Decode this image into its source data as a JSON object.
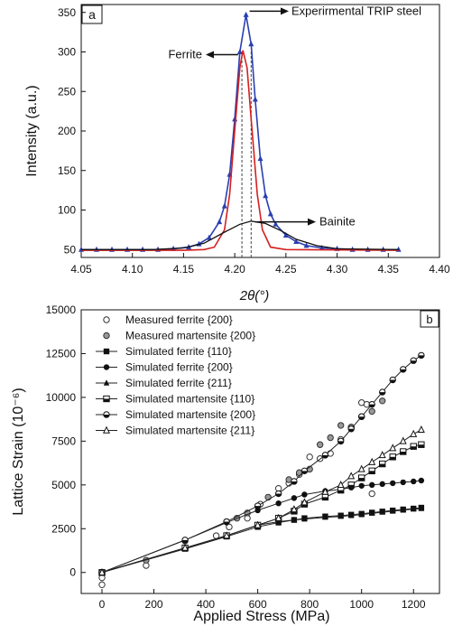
{
  "chart_data": [
    {
      "type": "line",
      "panel_label": "a",
      "xlabel": "2θ(°)",
      "ylabel": "Intensity (a.u.)",
      "xlim": [
        4.05,
        4.4
      ],
      "ylim": [
        40,
        360
      ],
      "xticks": [
        "4.05",
        "4.10",
        "4.15",
        "4.20",
        "4.25",
        "4.30",
        "4.35",
        "4.40"
      ],
      "yticks": [
        "50",
        "100",
        "150",
        "200",
        "250",
        "300",
        "350"
      ],
      "annotations": [
        {
          "text": "Experirmental TRIP steel",
          "x": 4.211,
          "y": 347
        },
        {
          "text": "Ferrite",
          "x": 4.205,
          "y": 300
        },
        {
          "text": "Bainite",
          "x": 4.22,
          "y": 85
        }
      ],
      "peak_lines_x": [
        4.207,
        4.216
      ],
      "series": [
        {
          "color": "#2a3fb0",
          "marker": "triangle",
          "points": [
            [
              4.05,
              50
            ],
            [
              4.065,
              50
            ],
            [
              4.08,
              50
            ],
            [
              4.095,
              50
            ],
            [
              4.11,
              50
            ],
            [
              4.125,
              50
            ],
            [
              4.14,
              51
            ],
            [
              4.155,
              53
            ],
            [
              4.165,
              57
            ],
            [
              4.175,
              65
            ],
            [
              4.185,
              85
            ],
            [
              4.19,
              105
            ],
            [
              4.195,
              145
            ],
            [
              4.2,
              215
            ],
            [
              4.205,
              300
            ],
            [
              4.211,
              347
            ],
            [
              4.216,
              310
            ],
            [
              4.22,
              240
            ],
            [
              4.225,
              165
            ],
            [
              4.23,
              118
            ],
            [
              4.235,
              95
            ],
            [
              4.24,
              82
            ],
            [
              4.25,
              68
            ],
            [
              4.26,
              60
            ],
            [
              4.27,
              55
            ],
            [
              4.285,
              52
            ],
            [
              4.3,
              51
            ],
            [
              4.315,
              50
            ],
            [
              4.33,
              50
            ],
            [
              4.345,
              50
            ],
            [
              4.36,
              50
            ]
          ]
        },
        {
          "color": "#d42020",
          "marker": "none",
          "points": [
            [
              4.05,
              49
            ],
            [
              4.15,
              49
            ],
            [
              4.17,
              50
            ],
            [
              4.18,
              53
            ],
            [
              4.19,
              75
            ],
            [
              4.195,
              120
            ],
            [
              4.2,
              200
            ],
            [
              4.205,
              280
            ],
            [
              4.208,
              302
            ],
            [
              4.212,
              280
            ],
            [
              4.217,
              200
            ],
            [
              4.222,
              120
            ],
            [
              4.227,
              75
            ],
            [
              4.235,
              53
            ],
            [
              4.25,
              50
            ],
            [
              4.36,
              49
            ]
          ]
        },
        {
          "color": "#111111",
          "marker": "none",
          "points": [
            [
              4.05,
              50
            ],
            [
              4.12,
              50
            ],
            [
              4.15,
              52
            ],
            [
              4.17,
              58
            ],
            [
              4.19,
              72
            ],
            [
              4.205,
              82
            ],
            [
              4.216,
              86
            ],
            [
              4.23,
              83
            ],
            [
              4.245,
              74
            ],
            [
              4.26,
              63
            ],
            [
              4.28,
              55
            ],
            [
              4.3,
              51
            ],
            [
              4.36,
              50
            ]
          ]
        }
      ]
    },
    {
      "type": "scatter",
      "panel_label": "b",
      "xlabel": "Applied Stress (MPa)",
      "ylabel": "Lattice Strain (10⁻⁶)",
      "xlim": [
        -80,
        1300
      ],
      "ylim": [
        -1200,
        15000
      ],
      "xticks": [
        "0",
        "200",
        "400",
        "600",
        "800",
        "1000",
        "1200"
      ],
      "yticks": [
        "0",
        "2500",
        "5000",
        "7500",
        "10000",
        "12500",
        "15000"
      ],
      "legend_position": "top-left",
      "series": [
        {
          "name": "Measured ferrite {200}",
          "marker": "open-circle",
          "line": false,
          "points": [
            [
              0,
              -700
            ],
            [
              0,
              -300
            ],
            [
              170,
              400
            ],
            [
              320,
              1400
            ],
            [
              440,
              2100
            ],
            [
              490,
              2600
            ],
            [
              560,
              3100
            ],
            [
              610,
              3900
            ],
            [
              680,
              4800
            ],
            [
              720,
              5100
            ],
            [
              760,
              5600
            ],
            [
              800,
              6600
            ],
            [
              840,
              6500
            ],
            [
              880,
              6800
            ],
            [
              920,
              7600
            ],
            [
              960,
              8300
            ],
            [
              1000,
              9700
            ],
            [
              1020,
              9600
            ],
            [
              1040,
              4500
            ]
          ]
        },
        {
          "name": "Measured martensite {200}",
          "marker": "hatched-circle",
          "line": false,
          "points": [
            [
              0,
              0
            ],
            [
              170,
              700
            ],
            [
              320,
              1800
            ],
            [
              480,
              2900
            ],
            [
              520,
              3100
            ],
            [
              560,
              3400
            ],
            [
              600,
              3800
            ],
            [
              640,
              4300
            ],
            [
              720,
              5300
            ],
            [
              760,
              5700
            ],
            [
              800,
              5900
            ],
            [
              840,
              7300
            ],
            [
              880,
              7700
            ],
            [
              920,
              8400
            ],
            [
              960,
              8300
            ],
            [
              1000,
              8900
            ],
            [
              1040,
              9200
            ],
            [
              1080,
              9800
            ]
          ]
        },
        {
          "name": "Simulated ferrite {110}",
          "marker": "filled-square",
          "line": true,
          "points": [
            [
              0,
              0
            ],
            [
              320,
              1350
            ],
            [
              480,
              2050
            ],
            [
              600,
              2600
            ],
            [
              680,
              2850
            ],
            [
              740,
              3000
            ],
            [
              780,
              3100
            ],
            [
              860,
              3200
            ],
            [
              920,
              3250
            ],
            [
              960,
              3300
            ],
            [
              1000,
              3350
            ],
            [
              1040,
              3420
            ],
            [
              1080,
              3480
            ],
            [
              1120,
              3540
            ],
            [
              1160,
              3600
            ],
            [
              1200,
              3650
            ],
            [
              1230,
              3700
            ]
          ]
        },
        {
          "name": "Simulated ferrite {200}",
          "marker": "filled-circle",
          "line": true,
          "points": [
            [
              0,
              0
            ],
            [
              320,
              1850
            ],
            [
              480,
              2850
            ],
            [
              600,
              3550
            ],
            [
              680,
              3950
            ],
            [
              740,
              4250
            ],
            [
              780,
              4450
            ],
            [
              860,
              4650
            ],
            [
              920,
              4750
            ],
            [
              960,
              4850
            ],
            [
              1000,
              4950
            ],
            [
              1040,
              5000
            ],
            [
              1080,
              5050
            ],
            [
              1120,
              5100
            ],
            [
              1160,
              5150
            ],
            [
              1200,
              5200
            ],
            [
              1230,
              5250
            ]
          ]
        },
        {
          "name": "Simulated ferrite {211}",
          "marker": "filled-triangle",
          "line": true,
          "points": [
            [
              0,
              0
            ],
            [
              320,
              1400
            ],
            [
              480,
              2100
            ],
            [
              600,
              2700
            ],
            [
              680,
              2900
            ],
            [
              740,
              3000
            ],
            [
              780,
              3050
            ],
            [
              860,
              3150
            ],
            [
              920,
              3200
            ],
            [
              960,
              3250
            ],
            [
              1000,
              3300
            ],
            [
              1040,
              3380
            ],
            [
              1080,
              3440
            ],
            [
              1120,
              3500
            ],
            [
              1160,
              3560
            ],
            [
              1200,
              3620
            ],
            [
              1230,
              3650
            ]
          ]
        },
        {
          "name": "Simulated martensite {110}",
          "marker": "half-square",
          "line": true,
          "points": [
            [
              0,
              0
            ],
            [
              320,
              1400
            ],
            [
              480,
              2100
            ],
            [
              600,
              2700
            ],
            [
              680,
              3100
            ],
            [
              740,
              3500
            ],
            [
              780,
              3900
            ],
            [
              860,
              4300
            ],
            [
              920,
              4700
            ],
            [
              960,
              5000
            ],
            [
              1000,
              5400
            ],
            [
              1040,
              5800
            ],
            [
              1080,
              6200
            ],
            [
              1120,
              6600
            ],
            [
              1160,
              6900
            ],
            [
              1200,
              7200
            ],
            [
              1230,
              7300
            ]
          ]
        },
        {
          "name": "Simulated martensite {200}",
          "marker": "half-circle",
          "line": true,
          "points": [
            [
              0,
              0
            ],
            [
              320,
              1850
            ],
            [
              480,
              2900
            ],
            [
              600,
              3800
            ],
            [
              680,
              4500
            ],
            [
              740,
              5200
            ],
            [
              780,
              5800
            ],
            [
              860,
              6700
            ],
            [
              920,
              7500
            ],
            [
              960,
              8200
            ],
            [
              1000,
              8900
            ],
            [
              1040,
              9600
            ],
            [
              1080,
              10300
            ],
            [
              1120,
              11000
            ],
            [
              1160,
              11600
            ],
            [
              1200,
              12100
            ],
            [
              1230,
              12400
            ]
          ]
        },
        {
          "name": "Simulated martensite {211}",
          "marker": "open-triangle",
          "line": true,
          "points": [
            [
              0,
              0
            ],
            [
              320,
              1400
            ],
            [
              480,
              2100
            ],
            [
              600,
              2700
            ],
            [
              680,
              3100
            ],
            [
              740,
              3600
            ],
            [
              780,
              4000
            ],
            [
              860,
              4600
            ],
            [
              920,
              5000
            ],
            [
              960,
              5500
            ],
            [
              1000,
              5900
            ],
            [
              1040,
              6300
            ],
            [
              1080,
              6700
            ],
            [
              1120,
              7100
            ],
            [
              1160,
              7500
            ],
            [
              1200,
              7900
            ],
            [
              1230,
              8150
            ]
          ]
        }
      ]
    }
  ]
}
